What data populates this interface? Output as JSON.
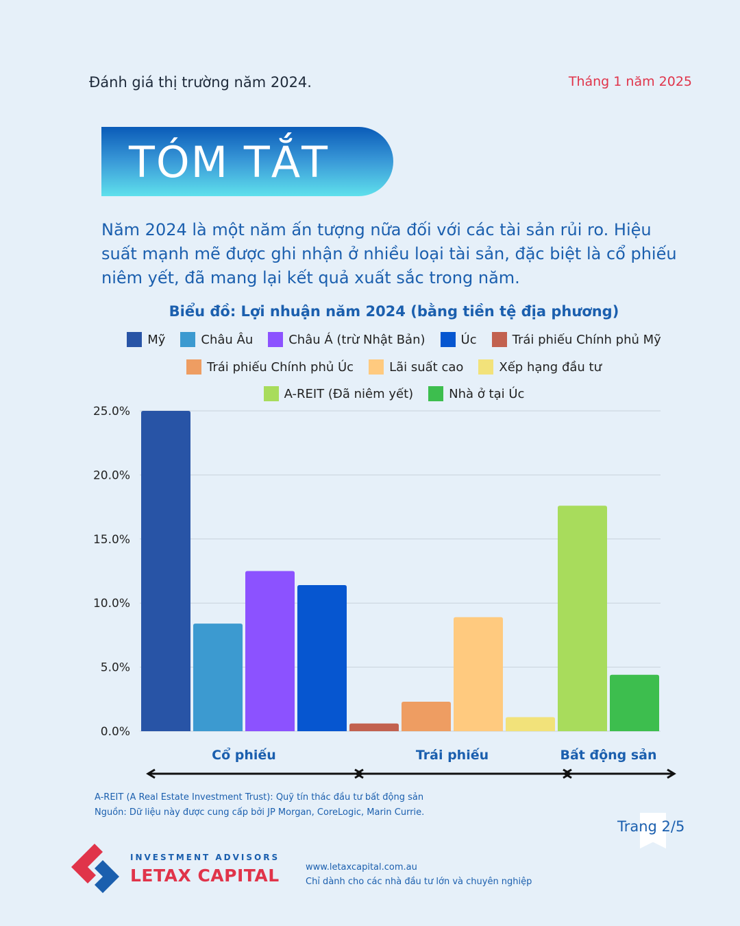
{
  "header": {
    "left_text": "Đánh giá thị trường năm 2024.",
    "date": "Tháng 1 năm 2025"
  },
  "title": "TÓM TẮT",
  "summary": "Năm 2024 là một năm ấn tượng nữa đối với các tài sản rủi ro. Hiệu suất mạnh mẽ được ghi nhận ở nhiều loại tài sản, đặc biệt là cổ phiếu niêm yết, đã mang lại kết quả xuất sắc trong năm.",
  "chart_data": {
    "type": "bar",
    "title": "Biểu đồ: Lợi nhuận năm 2024 (bằng tiền tệ địa phương)",
    "xlabel": "",
    "ylabel": "",
    "ylim": [
      0,
      25
    ],
    "yticks": [
      "0.0%",
      "5.0%",
      "10.0%",
      "15.0%",
      "20.0%",
      "25.0%"
    ],
    "grid": true,
    "legend_position": "top",
    "series": [
      {
        "name": "Mỹ",
        "value": 25.0,
        "color": "#2854a6"
      },
      {
        "name": "Châu Âu",
        "value": 8.4,
        "color": "#3c9ad0"
      },
      {
        "name": "Châu Á (trừ Nhật Bản)",
        "value": 12.5,
        "color": "#8c52ff"
      },
      {
        "name": "Úc",
        "value": 11.4,
        "color": "#0656d0"
      },
      {
        "name": "Trái phiếu Chính phủ Mỹ",
        "value": 0.6,
        "color": "#c2614f"
      },
      {
        "name": "Trái phiếu Chính phủ Úc",
        "value": 2.3,
        "color": "#ee9d62"
      },
      {
        "name": "Lãi suất cao",
        "value": 8.9,
        "color": "#ffca7f"
      },
      {
        "name": "Xếp hạng đầu tư",
        "value": 1.1,
        "color": "#f2e27a"
      },
      {
        "name": "A-REIT (Đã niêm yết)",
        "value": 17.6,
        "color": "#a8dc5c"
      },
      {
        "name": "Nhà ở tại Úc",
        "value": 4.4,
        "color": "#3dbe4e"
      }
    ],
    "groups": [
      {
        "label": "Cổ phiếu",
        "members": [
          0,
          1,
          2,
          3
        ]
      },
      {
        "label": "Trái phiếu",
        "members": [
          4,
          5,
          6,
          7
        ]
      },
      {
        "label": "Bất động sản",
        "members": [
          8,
          9
        ]
      }
    ]
  },
  "footnotes": {
    "areit": "A-REIT (A Real Estate Investment Trust): Quỹ tín thác đầu tư bất động sản",
    "source": "Nguồn: Dữ liệu này được cung cấp bởi JP Morgan, CoreLogic, Marin Currie."
  },
  "page": "Trang 2/5",
  "brand": {
    "sub": "INVESTMENT ADVISORS",
    "name": "LETAX CAPITAL",
    "website": "www.letaxcapital.com.au",
    "disclaimer": "Chỉ dành cho các nhà đầu tư lớn và chuyên nghiệp",
    "colors": {
      "red": "#e0344a",
      "blue": "#1b5fae"
    }
  }
}
